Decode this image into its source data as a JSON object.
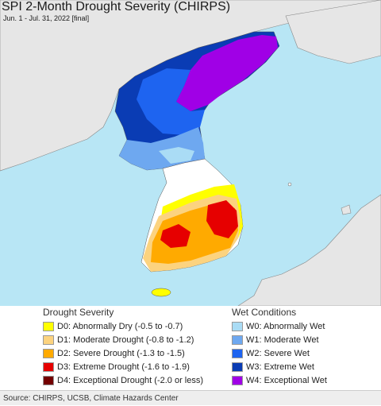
{
  "title": "SPI 2-Month Drought Severity (CHIRPS)",
  "subtitle": "Jun. 1 - Jul. 31, 2022 [final]",
  "legend_drought": {
    "heading": "Drought Severity",
    "items": [
      {
        "label": "D0: Abnormally Dry (-0.5 to -0.7)",
        "color": "#ffff00"
      },
      {
        "label": "D1: Moderate Drought (-0.8 to -1.2)",
        "color": "#fcd37f"
      },
      {
        "label": "D2: Severe Drought (-1.3 to -1.5)",
        "color": "#ffaa00"
      },
      {
        "label": "D3: Extreme Drought (-1.6 to -1.9)",
        "color": "#e60000"
      },
      {
        "label": "D4: Exceptional Drought (-2.0 or less)",
        "color": "#730000"
      }
    ]
  },
  "legend_wet": {
    "heading": "Wet Conditions",
    "items": [
      {
        "label": "W0: Abnormally Wet",
        "color": "#aadcf5"
      },
      {
        "label": "W1: Moderate Wet",
        "color": "#6ea8f0"
      },
      {
        "label": "W2: Severe Wet",
        "color": "#1e64f0"
      },
      {
        "label": "W3: Extreme Wet",
        "color": "#0a3cb4"
      },
      {
        "label": "W4: Exceptional Wet",
        "color": "#a000e6"
      }
    ]
  },
  "colors": {
    "sea": "#b8e6f5",
    "land_outside": "#e6e6e6",
    "neutral": "#ffffff"
  },
  "footer": "Source: CHIRPS, UCSB, Climate Hazards Center"
}
